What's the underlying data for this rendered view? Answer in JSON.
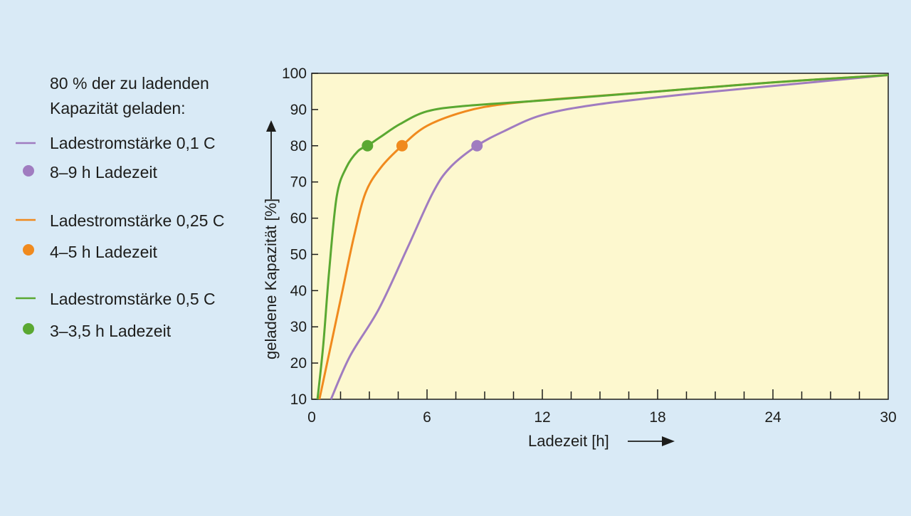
{
  "chart_data": {
    "type": "line",
    "xlabel": "Ladezeit [h]",
    "ylabel": "geladene Kapazität [%]",
    "xlim": [
      0,
      30
    ],
    "ylim": [
      10,
      100
    ],
    "x_ticks": [
      0,
      6,
      12,
      18,
      24,
      30
    ],
    "y_ticks": [
      10,
      20,
      30,
      40,
      50,
      60,
      70,
      80,
      90,
      100
    ],
    "grid": false,
    "legend_position": "left",
    "legend_heading": [
      "80 % der zu ladenden",
      "Kapazität geladen:"
    ],
    "series": [
      {
        "name": "Ladestromstärke 0,1 C",
        "marker_label": "8–9 h Ladezeit",
        "color": "#a07cc0",
        "x": [
          1.0,
          2.0,
          3.5,
          5.0,
          6.3,
          7.2,
          8.6,
          10.0,
          12.0,
          15.0,
          20.0,
          25.0,
          30.0
        ],
        "y": [
          10,
          22,
          35,
          52,
          67,
          74,
          80,
          84,
          88.5,
          91.5,
          94.5,
          97,
          99.5
        ],
        "marker": {
          "x": 8.6,
          "y": 80
        }
      },
      {
        "name": "Ladestromstärke 0,25 C",
        "marker_label": "4–5 h Ladezeit",
        "color": "#f08a1e",
        "x": [
          0.4,
          1.0,
          1.6,
          2.2,
          2.8,
          3.6,
          4.7,
          6.0,
          8.0,
          10.0,
          13.0,
          18.0,
          24.0,
          30.0
        ],
        "y": [
          10,
          25,
          40,
          55,
          67,
          74,
          80,
          85.5,
          89.5,
          91.5,
          93,
          95,
          97.5,
          99.5
        ],
        "marker": {
          "x": 4.7,
          "y": 80
        }
      },
      {
        "name": "Ladestromstärke 0,5 C",
        "marker_label": "3–3,5 h Ladezeit",
        "color": "#5aa832",
        "x": [
          0.3,
          0.6,
          0.9,
          1.3,
          1.8,
          2.4,
          2.9,
          3.6,
          4.6,
          6.0,
          8.0,
          12.0,
          18.0,
          24.0,
          30.0
        ],
        "y": [
          10,
          25,
          45,
          66,
          74,
          78.5,
          80,
          82.5,
          86,
          89.5,
          91,
          92.5,
          95,
          97.5,
          99.5
        ],
        "marker": {
          "x": 2.9,
          "y": 80
        }
      }
    ]
  }
}
